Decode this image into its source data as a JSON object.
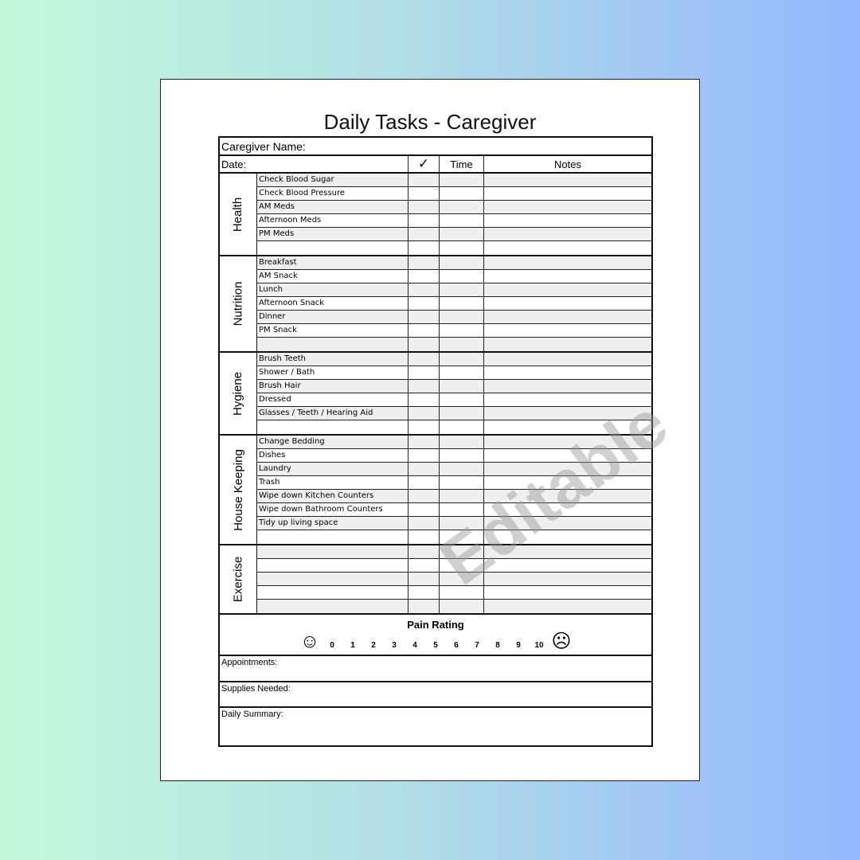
{
  "title": "Daily Tasks - Caregiver",
  "header": {
    "caregiver_label": "Caregiver Name:",
    "date_label": "Date:",
    "check_icon": "checkmark-icon",
    "check_symbol": "✓",
    "time_label": "Time",
    "notes_label": "Notes"
  },
  "sections": [
    {
      "name": "Health",
      "tasks": [
        "Check Blood Sugar",
        "Check Blood Pressure",
        "AM Meds",
        "Afternoon Meds",
        "PM Meds",
        ""
      ]
    },
    {
      "name": "Nutrition",
      "tasks": [
        "Breakfast",
        "AM Snack",
        "Lunch",
        "Afternoon Snack",
        "Dinner",
        "PM Snack",
        ""
      ]
    },
    {
      "name": "Hygiene",
      "tasks": [
        "Brush Teeth",
        "Shower / Bath",
        "Brush Hair",
        "Dressed",
        "Glasses / Teeth / Hearing Aid",
        ""
      ]
    },
    {
      "name": "House Keeping",
      "tasks": [
        "Change Bedding",
        "Dishes",
        "Laundry",
        "Trash",
        "Wipe down Kitchen Counters",
        "Wipe down Bathroom Counters",
        "Tidy up living space",
        ""
      ]
    },
    {
      "name": "Exercise",
      "tasks": [
        "",
        "",
        "",
        "",
        ""
      ]
    }
  ],
  "pain": {
    "label": "Pain Rating",
    "scale": [
      "0",
      "1",
      "2",
      "3",
      "4",
      "5",
      "6",
      "7",
      "8",
      "9",
      "10"
    ],
    "happy_icon": "☺",
    "sad_icon": "☹"
  },
  "boxes": {
    "appointments": "Appointments:",
    "supplies": "Supplies Needed:",
    "summary": "Daily Summary:"
  },
  "watermark": "Editable",
  "colors": {
    "row_shade": "#efefef",
    "background_left": "#c5f9da",
    "background_right": "#95b8fd"
  }
}
